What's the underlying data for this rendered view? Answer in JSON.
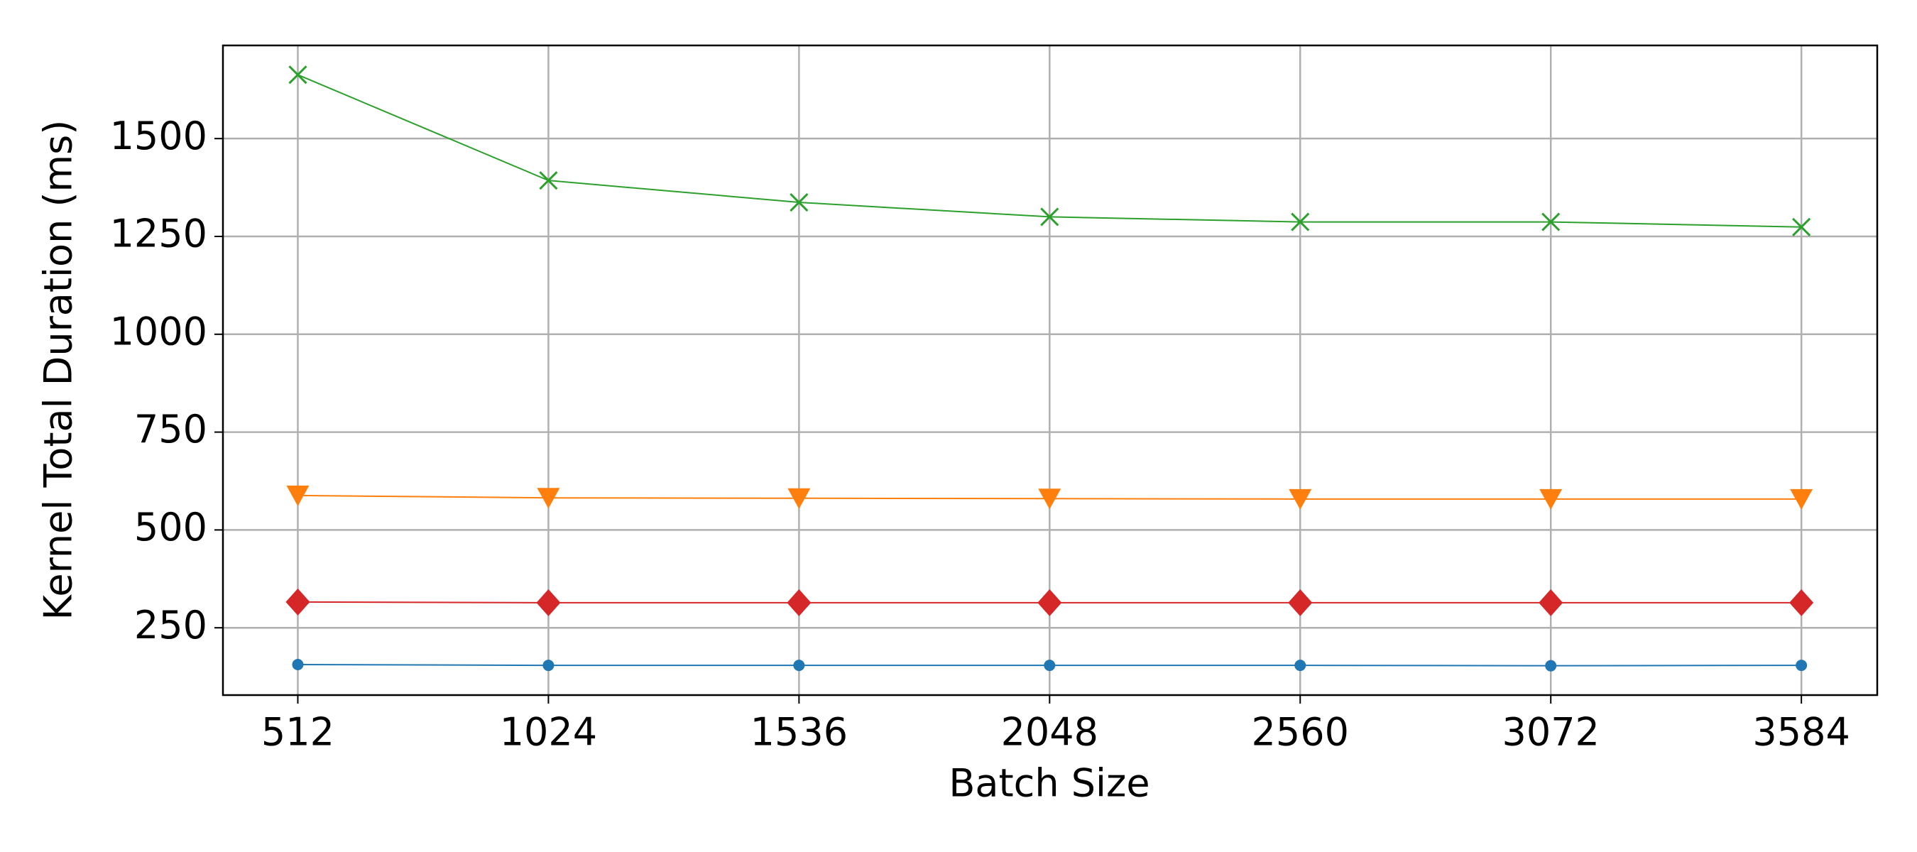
{
  "chart_data": {
    "type": "line",
    "xlabel": "Batch Size",
    "ylabel": "Kernel Total Duration (ms)",
    "x": [
      512,
      1024,
      1536,
      2048,
      2560,
      3072,
      3584
    ],
    "series": [
      {
        "color": "#1f77b4",
        "marker": "circle",
        "values": [
          156,
          154,
          154,
          154,
          154,
          153,
          154
        ]
      },
      {
        "color": "#ff7f0e",
        "marker": "triangle-down",
        "values": [
          588,
          582,
          581,
          580,
          579,
          579,
          579
        ]
      },
      {
        "color": "#2ca02c",
        "marker": "x",
        "values": [
          1663,
          1393,
          1337,
          1300,
          1287,
          1287,
          1274
        ]
      },
      {
        "color": "#d62728",
        "marker": "diamond",
        "values": [
          316,
          314,
          314,
          314,
          314,
          314,
          314
        ]
      }
    ],
    "xlim": [
      359,
      3739
    ],
    "ylim": [
      78,
      1738
    ],
    "xticks": [
      512,
      1024,
      1536,
      2048,
      2560,
      3072,
      3584
    ],
    "yticks": [
      250,
      500,
      750,
      1000,
      1250,
      1500
    ],
    "grid": true
  }
}
